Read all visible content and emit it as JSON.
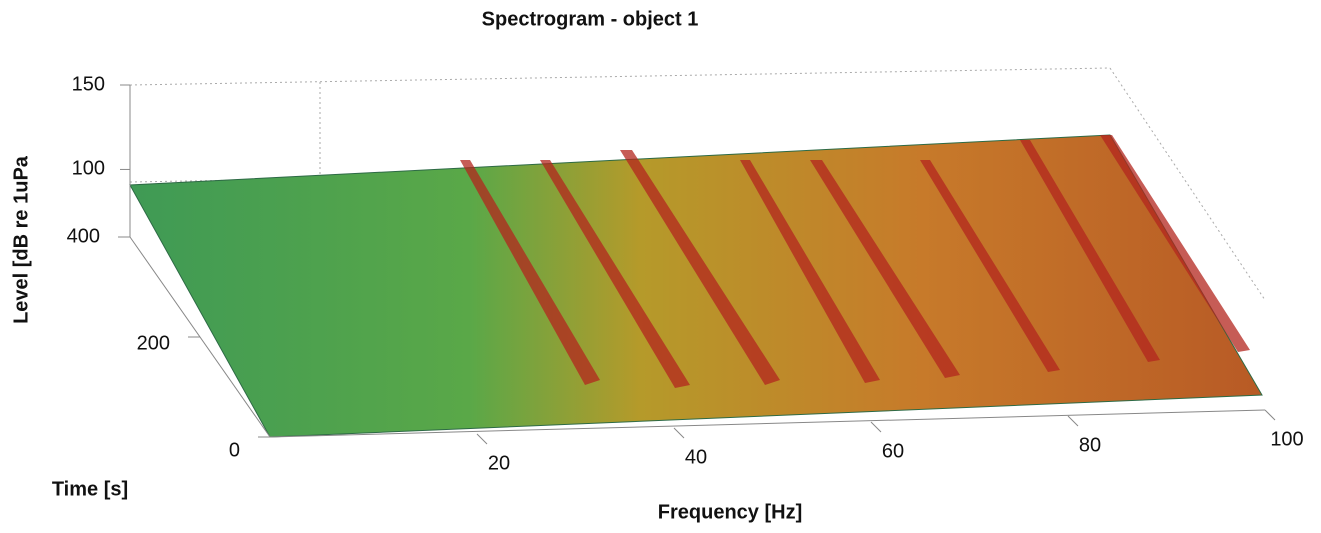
{
  "chart_data": {
    "type": "surface3d",
    "title": "Spectrogram - object 1",
    "zlabel": "Level [dB re 1uPa",
    "ylabel": "Time [s]",
    "xlabel": "Frequency [Hz]",
    "xlim": [
      0,
      100
    ],
    "xticks": [
      20,
      40,
      60,
      80,
      100
    ],
    "ylim": [
      0,
      400
    ],
    "yticks": [
      0,
      200,
      400
    ],
    "zlim": [
      60,
      150
    ],
    "zticks": [
      100,
      150
    ],
    "grid": true
  }
}
